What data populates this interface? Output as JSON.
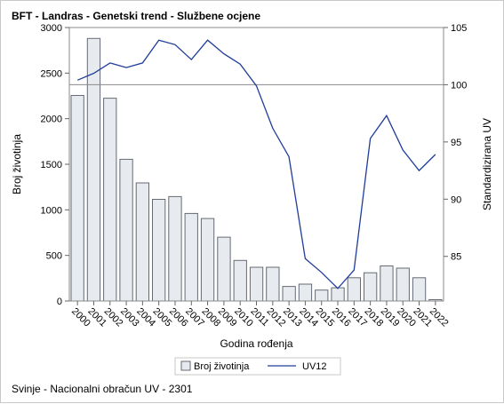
{
  "chart_data": {
    "type": "bar",
    "title": "BFT - Landras - Genetski trend - Službene ocjene",
    "xlabel": "Godina rođenja",
    "ylabel": "Broj životinja",
    "y2label": "Standardizirana UV",
    "categories": [
      "2000",
      "2001",
      "2002",
      "2003",
      "2004",
      "2005",
      "2006",
      "2007",
      "2008",
      "2009",
      "2010",
      "2011",
      "2012",
      "2013",
      "2014",
      "2015",
      "2016",
      "2017",
      "2018",
      "2019",
      "2020",
      "2021",
      "2022"
    ],
    "series": [
      {
        "name": "Broj životinja",
        "type": "bar",
        "axis": "left",
        "values": [
          2255,
          2880,
          2225,
          1555,
          1295,
          1115,
          1145,
          960,
          905,
          700,
          445,
          370,
          370,
          160,
          185,
          120,
          145,
          255,
          310,
          385,
          360,
          255,
          15
        ]
      },
      {
        "name": "UV12",
        "type": "line",
        "axis": "right",
        "values": [
          100.4,
          101.0,
          101.9,
          101.5,
          101.9,
          103.9,
          103.5,
          102.2,
          103.9,
          102.7,
          101.8,
          99.9,
          96.2,
          93.7,
          84.8,
          83.6,
          82.2,
          83.8,
          95.3,
          97.3,
          94.3,
          92.5,
          93.9
        ]
      }
    ],
    "ylim": [
      0,
      3000
    ],
    "yticks": [
      0,
      500,
      1000,
      1500,
      2000,
      2500,
      3000
    ],
    "y2lim": [
      81.1,
      105
    ],
    "y2ticks": [
      85,
      90,
      95,
      100,
      105
    ],
    "reference_line_y2": 100,
    "legend_position": "bottom",
    "grid": false,
    "colors": {
      "bar_fill": "#e7eaef",
      "bar_stroke": "#666a73",
      "line": "#1f3d99",
      "reference": "#8a8a8a"
    },
    "footnote": "Svinje - Nacionalni obračun UV - 2301"
  }
}
